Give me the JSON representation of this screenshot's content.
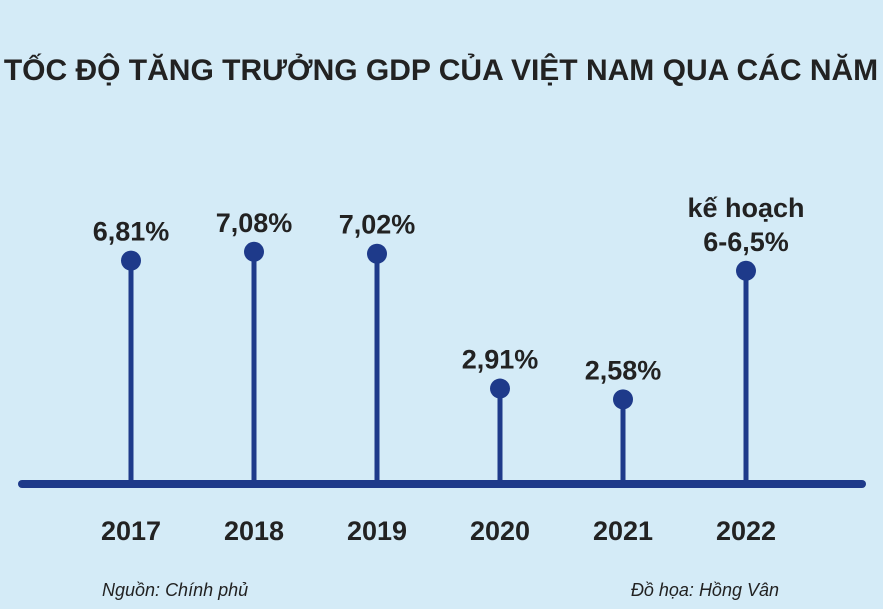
{
  "chart_data": {
    "type": "lollipop",
    "title": "TỐC ĐỘ TĂNG TRƯỞNG GDP CỦA VIỆT NAM QUA CÁC NĂM",
    "categories": [
      "2017",
      "2018",
      "2019",
      "2020",
      "2021",
      "2022"
    ],
    "values": [
      6.81,
      7.08,
      7.02,
      2.91,
      2.58,
      6.5
    ],
    "value_labels": [
      [
        "6,81%"
      ],
      [
        "7,08%"
      ],
      [
        "7,02%"
      ],
      [
        "2,91%"
      ],
      [
        "2,58%"
      ],
      [
        "kế hoạch",
        "6-6,5%"
      ]
    ],
    "colors": {
      "stem": "#1e3a8a",
      "background": "#d4ebf7",
      "text": "#222222"
    }
  },
  "footer": {
    "source_label": "Nguồn:",
    "source_value": "Chính phủ",
    "credit_label": "Đồ họa:",
    "credit_value": "Hồng Vân"
  }
}
